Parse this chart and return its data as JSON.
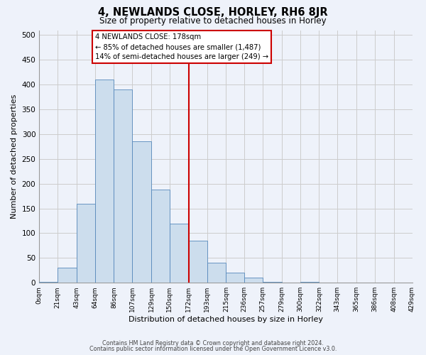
{
  "title": "4, NEWLANDS CLOSE, HORLEY, RH6 8JR",
  "subtitle": "Size of property relative to detached houses in Horley",
  "xlabel": "Distribution of detached houses by size in Horley",
  "ylabel": "Number of detached properties",
  "bin_edges": [
    0,
    21,
    43,
    64,
    86,
    107,
    129,
    150,
    172,
    193,
    215,
    236,
    257,
    279,
    300,
    322,
    343,
    365,
    386,
    408,
    429
  ],
  "bar_heights": [
    2,
    30,
    160,
    410,
    390,
    285,
    188,
    120,
    85,
    40,
    20,
    10,
    2,
    0,
    2,
    0,
    0,
    0,
    0,
    0
  ],
  "bar_color": "#ccdded",
  "bar_edge_color": "#5588bb",
  "grid_color": "#cccccc",
  "bg_color": "#eef2fa",
  "vline_x": 172,
  "vline_color": "#cc0000",
  "annotation_title": "4 NEWLANDS CLOSE: 178sqm",
  "annotation_line1": "← 85% of detached houses are smaller (1,487)",
  "annotation_line2": "14% of semi-detached houses are larger (249) →",
  "annotation_box_facecolor": "#ffffff",
  "annotation_box_edgecolor": "#cc0000",
  "footer_line1": "Contains HM Land Registry data © Crown copyright and database right 2024.",
  "footer_line2": "Contains public sector information licensed under the Open Government Licence v3.0.",
  "ylim": [
    0,
    510
  ],
  "yticks": [
    0,
    50,
    100,
    150,
    200,
    250,
    300,
    350,
    400,
    450,
    500
  ],
  "tick_labels": [
    "0sqm",
    "21sqm",
    "43sqm",
    "64sqm",
    "86sqm",
    "107sqm",
    "129sqm",
    "150sqm",
    "172sqm",
    "193sqm",
    "215sqm",
    "236sqm",
    "257sqm",
    "279sqm",
    "300sqm",
    "322sqm",
    "343sqm",
    "365sqm",
    "386sqm",
    "408sqm",
    "429sqm"
  ]
}
